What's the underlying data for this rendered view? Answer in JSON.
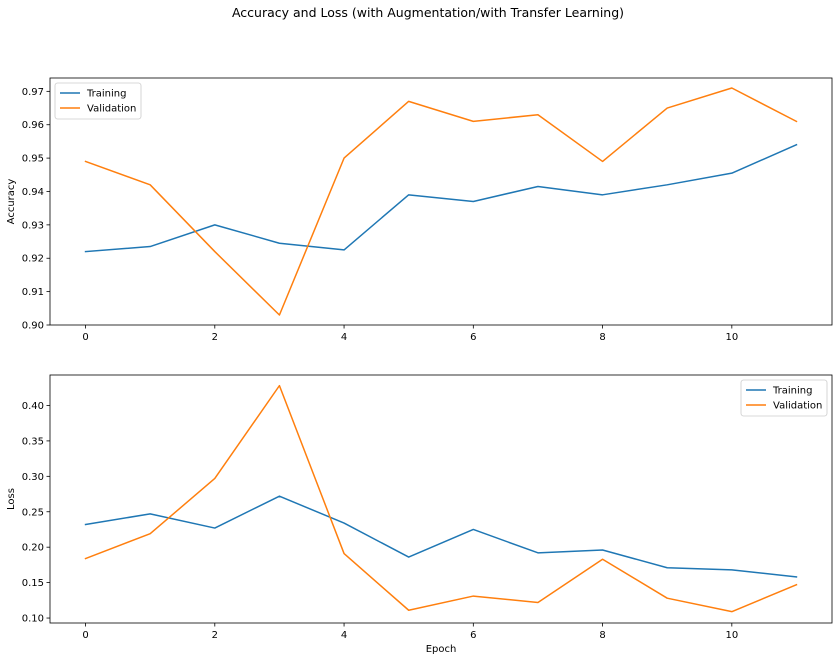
{
  "figure": {
    "title": "Accuracy and Loss (with Augmentation/with Transfer Learning)"
  },
  "chart_data": [
    {
      "type": "line",
      "title": "",
      "xlabel": "",
      "ylabel": "Accuracy",
      "xlim": [
        -0.55,
        11.55
      ],
      "ylim": [
        0.9,
        0.974
      ],
      "xticks": [
        0,
        2,
        4,
        6,
        8,
        10
      ],
      "yticks": [
        0.9,
        0.91,
        0.92,
        0.93,
        0.94,
        0.95,
        0.96,
        0.97
      ],
      "ytick_decimals": 2,
      "grid": false,
      "legend_position": "top-left",
      "x": [
        0,
        1,
        2,
        3,
        4,
        5,
        6,
        7,
        8,
        9,
        10,
        11
      ],
      "series": [
        {
          "name": "Training",
          "color": "#1f77b4",
          "values": [
            0.922,
            0.9235,
            0.93,
            0.9245,
            0.9225,
            0.939,
            0.937,
            0.9415,
            0.939,
            0.942,
            0.9455,
            0.954
          ]
        },
        {
          "name": "Validation",
          "color": "#ff7f0e",
          "values": [
            0.949,
            0.942,
            0.922,
            0.903,
            0.95,
            0.967,
            0.961,
            0.963,
            0.949,
            0.965,
            0.971,
            0.961
          ]
        }
      ]
    },
    {
      "type": "line",
      "title": "",
      "xlabel": "Epoch",
      "ylabel": "Loss",
      "xlim": [
        -0.55,
        11.55
      ],
      "ylim": [
        0.093,
        0.443
      ],
      "xticks": [
        0,
        2,
        4,
        6,
        8,
        10
      ],
      "yticks": [
        0.1,
        0.15,
        0.2,
        0.25,
        0.3,
        0.35,
        0.4
      ],
      "ytick_decimals": 2,
      "grid": false,
      "legend_position": "top-right",
      "x": [
        0,
        1,
        2,
        3,
        4,
        5,
        6,
        7,
        8,
        9,
        10,
        11
      ],
      "series": [
        {
          "name": "Training",
          "color": "#1f77b4",
          "values": [
            0.232,
            0.247,
            0.227,
            0.272,
            0.234,
            0.186,
            0.225,
            0.192,
            0.196,
            0.171,
            0.168,
            0.158
          ]
        },
        {
          "name": "Validation",
          "color": "#ff7f0e",
          "values": [
            0.184,
            0.219,
            0.297,
            0.428,
            0.191,
            0.111,
            0.131,
            0.122,
            0.183,
            0.128,
            0.109,
            0.147
          ]
        }
      ]
    }
  ]
}
